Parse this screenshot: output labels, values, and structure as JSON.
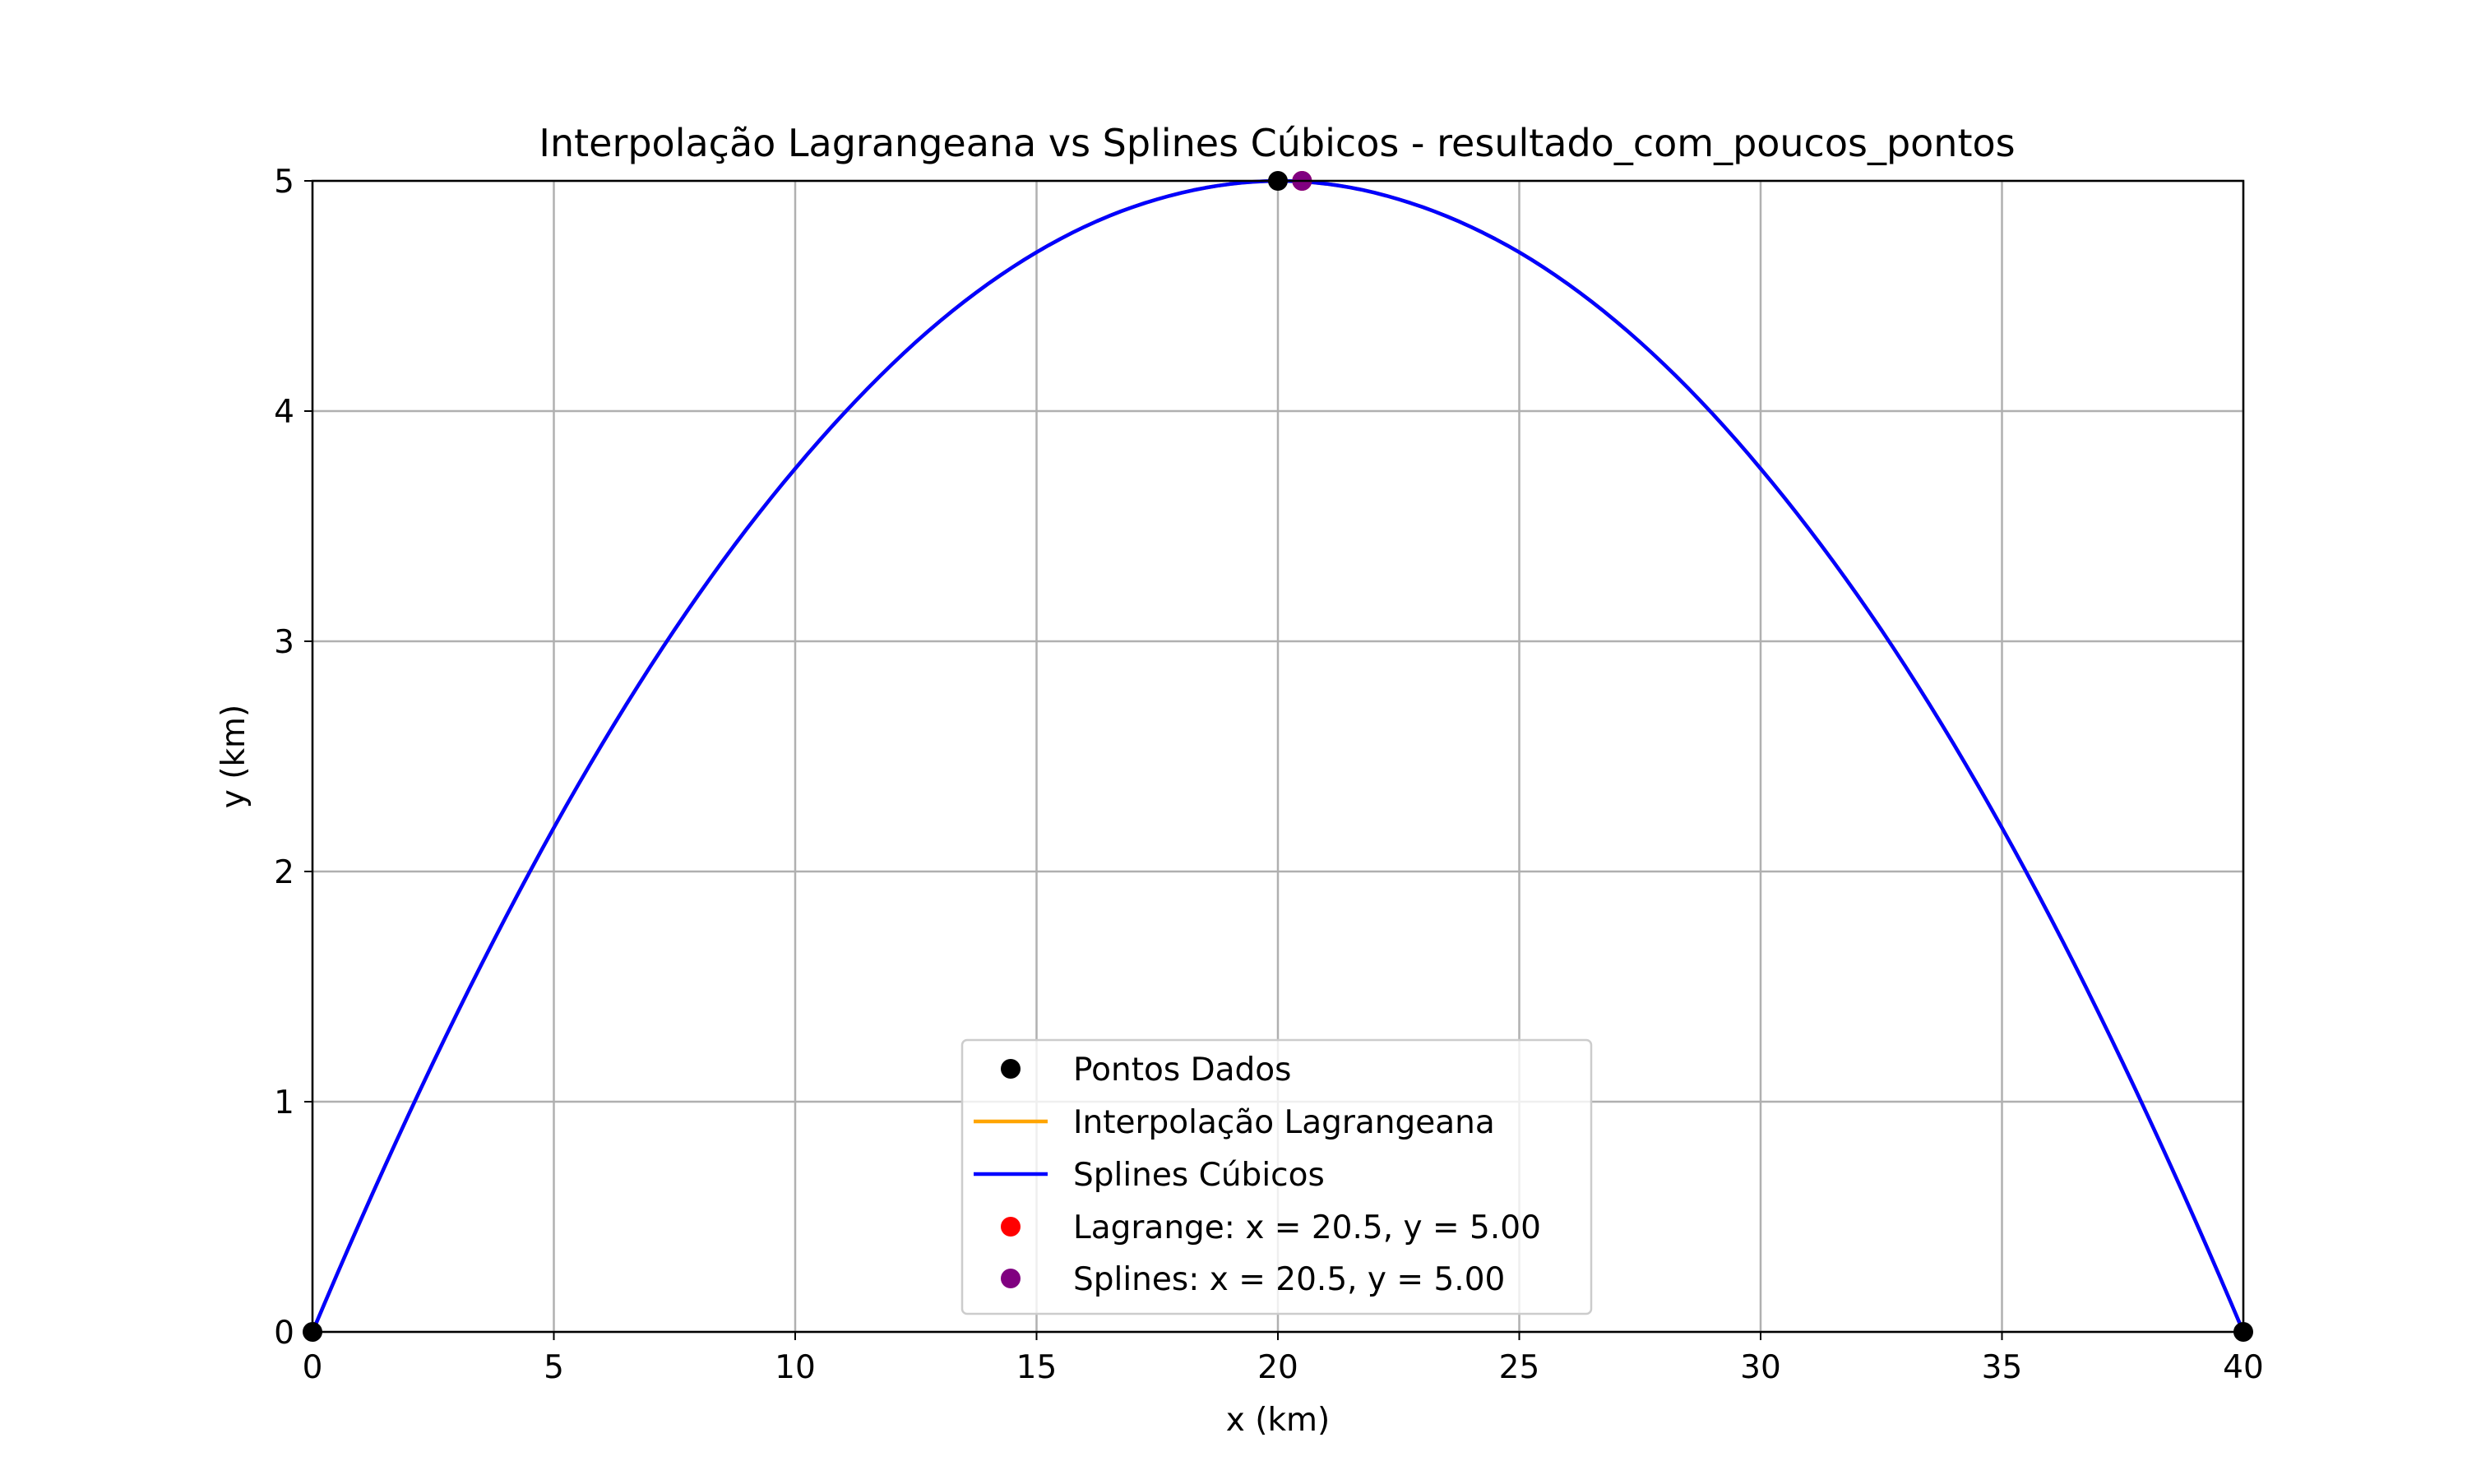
{
  "chart_data": {
    "type": "line",
    "title": "Interpolação Lagrangeana vs Splines Cúbicos - resultado_com_poucos_pontos",
    "xlabel": "x (km)",
    "ylabel": "y (km)",
    "xlim": [
      0,
      40
    ],
    "ylim": [
      0,
      5
    ],
    "xticks": [
      "0",
      "5",
      "10",
      "15",
      "20",
      "25",
      "30",
      "35",
      "40"
    ],
    "yticks": [
      "0",
      "1",
      "2",
      "3",
      "4",
      "5"
    ],
    "grid": true,
    "legend_position": "lower-center",
    "data_points": {
      "name": "Pontos Dados",
      "color": "#000000",
      "x": [
        0,
        20,
        40
      ],
      "y": [
        0,
        5,
        0
      ]
    },
    "series": [
      {
        "name": "Interpolação Lagrangeana",
        "color": "#ffa500",
        "x": [
          0,
          2.5,
          5,
          7.5,
          10,
          12.5,
          15,
          17.5,
          20,
          22.5,
          25,
          27.5,
          30,
          32.5,
          35,
          37.5,
          40
        ],
        "y": [
          0,
          1.17,
          2.19,
          3.05,
          3.75,
          4.3,
          4.69,
          4.92,
          5.0,
          4.92,
          4.69,
          4.3,
          3.75,
          3.05,
          2.19,
          1.17,
          0
        ]
      },
      {
        "name": "Splines Cúbicos",
        "color": "#0000ff",
        "x": [
          0,
          2.5,
          5,
          7.5,
          10,
          12.5,
          15,
          17.5,
          20,
          22.5,
          25,
          27.5,
          30,
          32.5,
          35,
          37.5,
          40
        ],
        "y": [
          0,
          1.17,
          2.19,
          3.05,
          3.75,
          4.3,
          4.69,
          4.92,
          5.0,
          4.92,
          4.69,
          4.3,
          3.75,
          3.05,
          2.19,
          1.17,
          0
        ]
      }
    ],
    "highlights": [
      {
        "name": "Lagrange: x = 20.5, y = 5.00",
        "color": "#ff0000",
        "x": 20.5,
        "y": 5.0
      },
      {
        "name": "Splines: x = 20.5, y = 5.00",
        "color": "#800080",
        "x": 20.5,
        "y": 5.0
      }
    ]
  }
}
